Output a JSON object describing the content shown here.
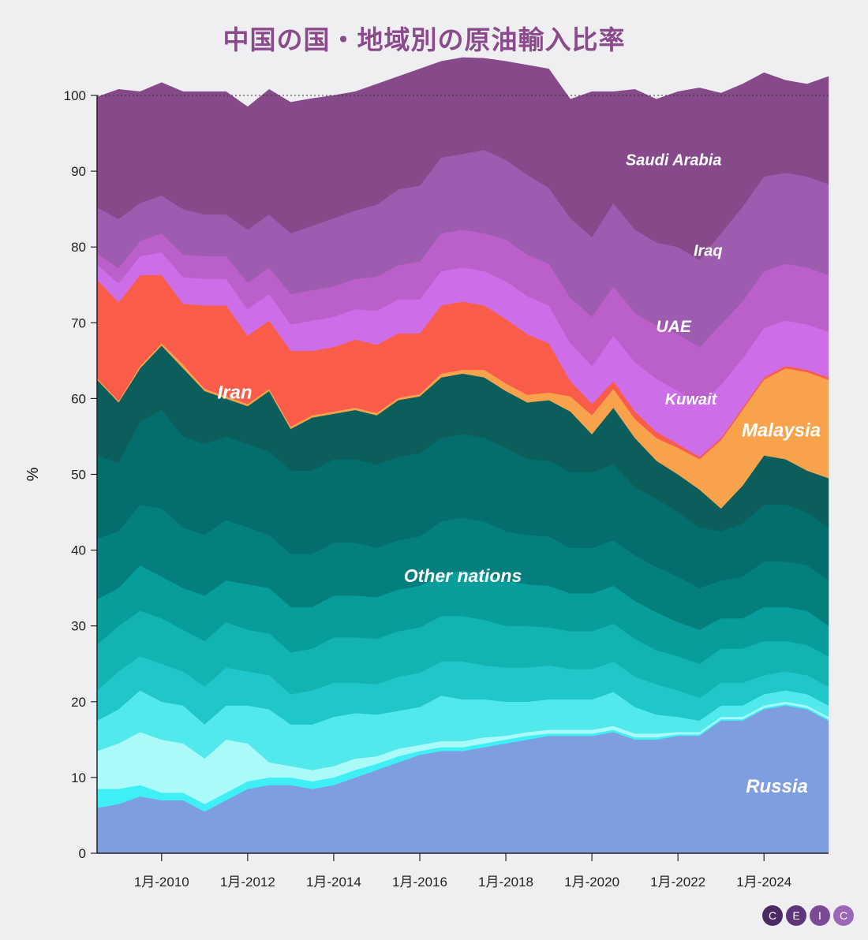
{
  "title": "中国の国・地域別の原油輸入比率",
  "logo": [
    "C",
    "E",
    "I",
    "C"
  ],
  "chart_data": {
    "type": "area",
    "stacked": true,
    "ylabel": "%",
    "ylim": [
      0,
      100
    ],
    "yticks": [
      "0",
      "10",
      "20",
      "30",
      "40",
      "50",
      "60",
      "70",
      "80",
      "90",
      "100"
    ],
    "xlim": [
      2008.5,
      2025.5
    ],
    "xticks": [
      {
        "x": 2010,
        "label": "1月-2010"
      },
      {
        "x": 2012,
        "label": "1月-2012"
      },
      {
        "x": 2014,
        "label": "1月-2014"
      },
      {
        "x": 2016,
        "label": "1月-2016"
      },
      {
        "x": 2018,
        "label": "1月-2018"
      },
      {
        "x": 2020,
        "label": "1月-2020"
      },
      {
        "x": 2022,
        "label": "1月-2022"
      },
      {
        "x": 2024,
        "label": "1月-2024"
      }
    ],
    "x": [
      2008.5,
      2009.0,
      2009.5,
      2010.0,
      2010.5,
      2011.0,
      2011.5,
      2012.0,
      2012.5,
      2013.0,
      2013.5,
      2014.0,
      2014.5,
      2015.0,
      2015.5,
      2016.0,
      2016.5,
      2017.0,
      2017.5,
      2018.0,
      2018.5,
      2019.0,
      2019.5,
      2020.0,
      2020.5,
      2021.0,
      2021.5,
      2022.0,
      2022.5,
      2023.0,
      2023.5,
      2024.0,
      2024.5,
      2025.0,
      2025.5
    ],
    "series": [
      {
        "name": "Russia",
        "color": "#7f9ee0",
        "values": [
          6,
          6.5,
          7.5,
          7,
          7,
          5.5,
          7,
          8.5,
          9,
          9,
          8.5,
          9,
          10,
          11,
          12,
          13,
          13.5,
          13.5,
          14,
          14.5,
          15,
          15.5,
          15.5,
          15.5,
          16,
          15,
          15,
          15.5,
          15.5,
          17.5,
          17.5,
          19,
          19.5,
          19,
          17.5
        ]
      },
      {
        "name": "",
        "color": "#3ef0f5",
        "values": [
          2.5,
          2,
          1.5,
          1,
          1,
          1,
          1,
          1,
          1,
          1,
          1,
          1,
          1,
          0.8,
          0.8,
          0.5,
          0.5,
          0.5,
          0.5,
          0.5,
          0.5,
          0.3,
          0.3,
          0.3,
          0.3,
          0.3,
          0.3,
          0.2,
          0.2,
          0.2,
          0.2,
          0.2,
          0.2,
          0.2,
          0.2
        ]
      },
      {
        "name": "",
        "color": "#a9faf9",
        "values": [
          5,
          6,
          7,
          7,
          6.5,
          6,
          7,
          5,
          2,
          1.5,
          1.5,
          1.5,
          1.5,
          1,
          1,
          0.8,
          0.8,
          0.8,
          0.8,
          0.5,
          0.5,
          0.5,
          0.5,
          0.5,
          0.5,
          0.5,
          0.5,
          0.3,
          0.3,
          0.3,
          0.3,
          0.3,
          0.3,
          0.3,
          0.3
        ]
      },
      {
        "name": "",
        "color": "#52e9ec",
        "values": [
          4,
          4.5,
          5.5,
          5,
          5,
          4.5,
          4.5,
          5,
          7,
          5.5,
          6,
          6.5,
          6,
          5.5,
          5,
          5,
          6,
          5.5,
          5,
          4.5,
          4,
          4,
          4,
          4,
          4.5,
          3.5,
          2.5,
          2,
          1.5,
          1.5,
          1.5,
          1.5,
          1.5,
          1.5,
          1.5
        ]
      },
      {
        "name": "",
        "color": "#21c6c9",
        "values": [
          4,
          5,
          4.5,
          5,
          4.5,
          5,
          5,
          4.5,
          4.5,
          4,
          4.5,
          4.5,
          4,
          4,
          4.5,
          4.5,
          4.5,
          5,
          4.5,
          4.5,
          4.5,
          4.5,
          4,
          4,
          4,
          4,
          4,
          3.5,
          3,
          3,
          3,
          2.5,
          2.5,
          2.5,
          2.5
        ]
      },
      {
        "name": "",
        "color": "#12b3b1",
        "values": [
          6,
          6,
          6,
          6,
          5.5,
          6,
          6,
          5.5,
          5.5,
          5.5,
          5.5,
          6,
          6,
          6,
          6,
          6,
          6,
          6,
          6,
          5.5,
          5.5,
          5,
          5,
          5,
          5,
          5,
          4.5,
          4.5,
          4.5,
          4.5,
          4.5,
          4.5,
          4,
          4,
          4
        ]
      },
      {
        "name": "",
        "color": "#079d9b",
        "values": [
          6,
          5,
          6,
          5.5,
          5.5,
          6,
          5.5,
          6,
          6,
          6,
          5.5,
          5.5,
          5.5,
          5.5,
          5.5,
          5.5,
          5.5,
          6,
          6,
          6,
          5.5,
          5.5,
          5,
          5,
          5,
          5,
          5,
          4.5,
          4.5,
          4,
          4,
          4.5,
          4.5,
          4.5,
          4
        ]
      },
      {
        "name": "Other nations",
        "color": "#047f7d",
        "values": [
          8,
          7.5,
          8,
          9,
          8,
          8,
          8,
          7.5,
          7,
          7,
          7,
          7,
          7,
          6.5,
          6.5,
          6.5,
          7,
          7,
          7,
          6.5,
          6.5,
          6.5,
          6,
          6,
          6,
          6,
          6,
          6,
          5.5,
          5,
          5.5,
          6,
          6,
          6,
          6
        ]
      },
      {
        "name": "",
        "color": "#036e6d",
        "values": [
          11,
          9,
          11,
          13,
          12,
          12,
          11,
          11,
          11,
          11,
          11,
          11,
          11,
          11,
          11,
          11,
          11,
          11,
          11,
          11,
          10,
          10,
          10,
          10,
          10,
          9,
          9,
          8.5,
          8,
          6.5,
          7,
          7.5,
          7.5,
          7,
          7
        ]
      },
      {
        "name": "",
        "color": "#0b5e5c",
        "values": [
          10,
          8,
          7,
          8.5,
          9,
          7,
          5,
          5,
          8,
          5.5,
          7,
          6,
          6.5,
          6.5,
          7.5,
          7.5,
          8,
          8,
          8,
          7.5,
          7.5,
          8,
          8,
          5,
          7.5,
          6.5,
          5,
          5,
          5,
          3,
          5,
          6.5,
          6,
          5.5,
          6.5
        ]
      },
      {
        "name": "Malaysia",
        "color": "#f8a34b",
        "values": [
          0.2,
          0.2,
          0.3,
          0.3,
          0.5,
          0.3,
          0.3,
          0.3,
          0.3,
          0.3,
          0.3,
          0.3,
          0.3,
          0.3,
          0.3,
          0.3,
          0.5,
          0.5,
          1,
          1,
          1,
          1,
          2,
          2.5,
          2.5,
          2.5,
          3,
          3.5,
          4,
          9,
          10,
          10,
          12,
          13,
          13
        ]
      },
      {
        "name": "Iran",
        "color": "#fa5c4a",
        "values": [
          13,
          13,
          12,
          9,
          8,
          11,
          12,
          9,
          9,
          10,
          8.5,
          8.5,
          9,
          9,
          8.5,
          8,
          9,
          9,
          8.5,
          8.5,
          8,
          6.5,
          2,
          1.5,
          1,
          1,
          0.8,
          0.5,
          0.3,
          0.3,
          0.3,
          0.3,
          0.3,
          0.3,
          0.3
        ]
      },
      {
        "name": "Kuwait",
        "color": "#ce6de8",
        "values": [
          2,
          2.5,
          2.5,
          3,
          3.5,
          3.5,
          3.5,
          3.5,
          3.5,
          3.5,
          4,
          4,
          4,
          4.5,
          4.5,
          4.5,
          4.5,
          4.5,
          4.5,
          5,
          5,
          5,
          5,
          5,
          6,
          6.5,
          7,
          7,
          7,
          7,
          6.5,
          6.5,
          6,
          6,
          6
        ]
      },
      {
        "name": "UAE",
        "color": "#bb5fcb",
        "values": [
          1.5,
          2,
          2,
          2.5,
          3,
          3,
          3,
          3.5,
          3.5,
          4,
          4,
          4,
          4,
          4.5,
          4.5,
          5,
          5,
          5,
          5,
          5.5,
          5.5,
          5.5,
          6,
          6.5,
          6.5,
          6.5,
          7,
          7.5,
          7.5,
          8,
          7.5,
          7.5,
          7.5,
          7.5,
          7.5
        ]
      },
      {
        "name": "Iraq",
        "color": "#9d5caf",
        "values": [
          6,
          6.5,
          5,
          5,
          6,
          5.5,
          5.5,
          7,
          7,
          8,
          8.5,
          9,
          9,
          9.5,
          10,
          10,
          10,
          10,
          11,
          10.5,
          10.5,
          10,
          10.5,
          10.5,
          11,
          11,
          11,
          11.5,
          11.5,
          12,
          12.5,
          12.5,
          12,
          12,
          12
        ]
      },
      {
        "name": "Saudi Arabia",
        "color": "#864a8b",
        "values": [
          14.6,
          17.1,
          14.7,
          14.9,
          15.5,
          16.2,
          16.2,
          16.2,
          16.5,
          17.3,
          16.8,
          16.2,
          15.7,
          15.9,
          14.9,
          15.4,
          12.7,
          12.7,
          12.1,
          13,
          14.5,
          15.7,
          15.7,
          19.2,
          14.7,
          18.5,
          18.9,
          20.5,
          22.7,
          18.5,
          16.2,
          13.7,
          12.2,
          12.2,
          14.2
        ]
      }
    ],
    "annotations": [
      {
        "text": "Saudi Arabia",
        "x": 2021.9,
        "y": 90.8
      },
      {
        "text": "Iraq",
        "x": 2022.7,
        "y": 78.8
      },
      {
        "text": "UAE",
        "x": 2021.9,
        "y": 68.8
      },
      {
        "text": "Kuwait",
        "x": 2022.3,
        "y": 59.2
      },
      {
        "text": "Malaysia",
        "x": 2024.4,
        "y": 55.0
      },
      {
        "text": "Iran",
        "x": 2011.7,
        "y": 60.0
      },
      {
        "text": "Other nations",
        "x": 2017.0,
        "y": 35.8
      },
      {
        "text": "Russia",
        "x": 2024.3,
        "y": 8.0
      }
    ]
  }
}
